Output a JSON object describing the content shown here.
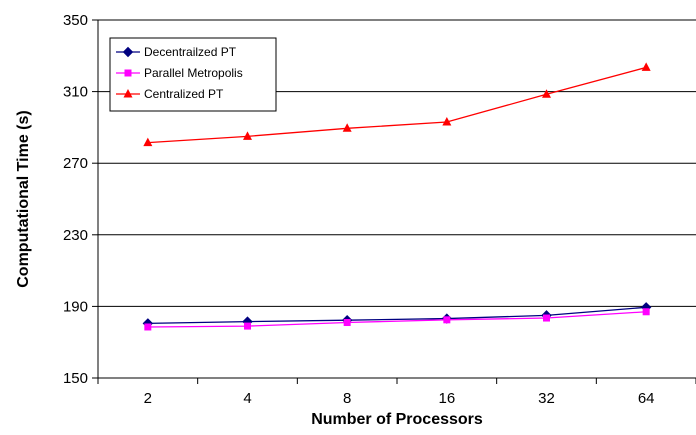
{
  "chart_data": {
    "type": "line",
    "categories": [
      "2",
      "4",
      "8",
      "16",
      "32",
      "64"
    ],
    "series": [
      {
        "name": "Decentrailzed PT",
        "values": [
          180.5,
          181.5,
          182.3,
          183.2,
          185.0,
          189.5
        ],
        "color": "#000080",
        "marker": "diamond"
      },
      {
        "name": "Parallel Metropolis",
        "values": [
          178.5,
          179.0,
          181.0,
          182.5,
          183.5,
          187.0
        ],
        "color": "#ff00ff",
        "marker": "square"
      },
      {
        "name": "Centralized PT",
        "values": [
          281.5,
          285.0,
          289.5,
          293.0,
          308.5,
          323.5
        ],
        "color": "#ff0000",
        "marker": "triangle"
      }
    ],
    "xlabel": "Number of Processors",
    "ylabel": "Computational Time (s)",
    "ylim": [
      150,
      350
    ],
    "yticks": [
      150,
      190,
      230,
      270,
      310,
      350
    ],
    "grid": "horizontal",
    "legend_position": "top-left"
  }
}
